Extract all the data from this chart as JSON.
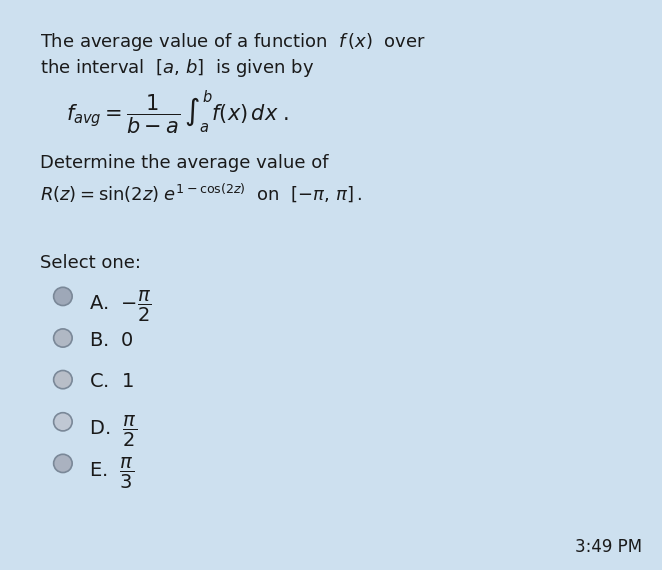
{
  "bg_color": "#cde0ef",
  "panel_color": "#ddeaf5",
  "text_color": "#1a1a1a",
  "title_text1": "The average value of a function  $f\\,(x)$  over",
  "title_text2": "the interval  $[a,\\,b]$  is given by",
  "formula": "$f_{avg} = \\dfrac{1}{b-a}\\,\\int_{a}^{b} f(x)\\,dx\\;.$",
  "problem_text1": "Determine the average value of",
  "problem_text2": "$R(z) = \\sin(2z)\\;e^{1-\\cos(2z)}$  on  $[-\\pi,\\,\\pi]\\,.$",
  "select_label": "Select one:",
  "choice_labels": [
    "A.",
    "B.",
    "C.",
    "D.",
    "E."
  ],
  "choice_math": [
    "$-\\dfrac{\\pi}{2}$",
    "$0$",
    "$1$",
    "$\\dfrac{\\pi}{2}$",
    "$\\dfrac{\\pi}{3}$"
  ],
  "time_text": "3:49 PM",
  "font_size_main": 13,
  "font_size_formula": 15,
  "font_size_choices": 13,
  "circle_colors": [
    "#9ea8b8",
    "#b0b8c4",
    "#b8bec8",
    "#c0c8d4",
    "#aab2c0"
  ],
  "circle_edge": "#7a8898"
}
